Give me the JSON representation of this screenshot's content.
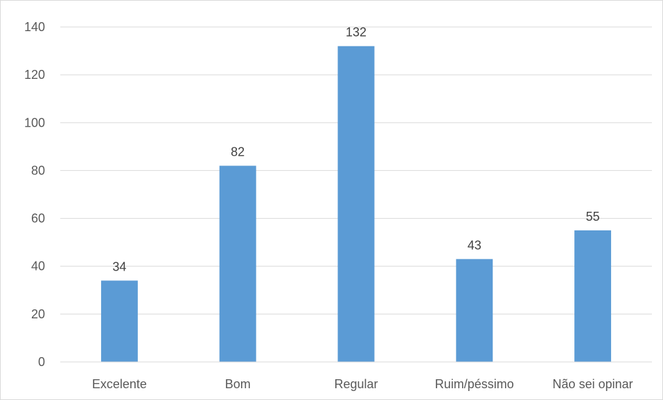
{
  "chart_data": {
    "type": "bar",
    "title": "",
    "xlabel": "",
    "ylabel": "",
    "categories": [
      "Excelente",
      "Bom",
      "Regular",
      "Ruim/péssimo",
      "Não sei opinar"
    ],
    "values": [
      34,
      82,
      132,
      43,
      55
    ],
    "data_labels": [
      "34",
      "82",
      "132",
      "43",
      "55"
    ],
    "ylim": [
      0,
      140
    ],
    "yticks": [
      0,
      20,
      40,
      60,
      80,
      100,
      120,
      140
    ],
    "ytick_labels": [
      "0",
      "20",
      "40",
      "60",
      "80",
      "100",
      "120",
      "140"
    ],
    "grid": true,
    "legend": "none",
    "bar_color": "#5b9bd5",
    "grid_color": "#d9d9d9",
    "tick_label_color": "#595959",
    "data_label_color": "#404040"
  }
}
